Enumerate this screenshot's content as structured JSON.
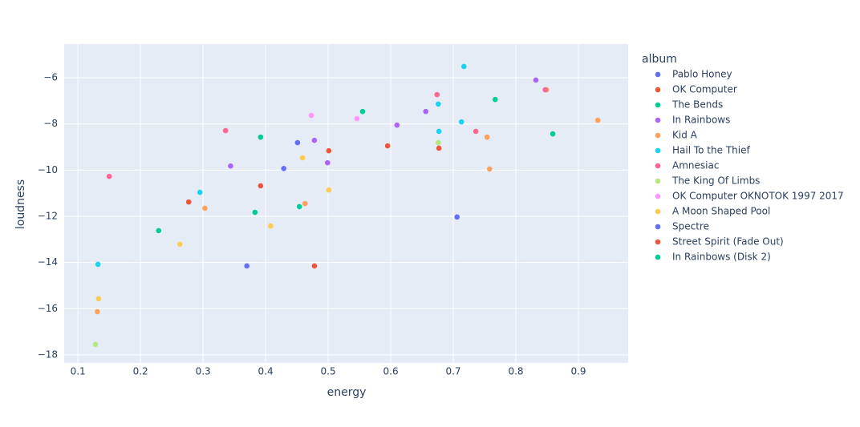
{
  "chart_data": {
    "type": "scatter",
    "x_label": "energy",
    "y_label": "loudness",
    "legend_title": "album",
    "xlim": [
      0.078,
      0.9795
    ],
    "ylim": [
      -18.35,
      -4.54
    ],
    "xticks": [
      0.1,
      0.2,
      0.3,
      0.4,
      0.5,
      0.6,
      0.7,
      0.8,
      0.9
    ],
    "yticks": [
      {
        "value": -18,
        "label": "−18"
      },
      {
        "value": -16,
        "label": "−16"
      },
      {
        "value": -14,
        "label": "−14"
      },
      {
        "value": -12,
        "label": "−12"
      },
      {
        "value": -10,
        "label": "−10"
      },
      {
        "value": -8,
        "label": "−8"
      },
      {
        "value": -6,
        "label": "−6"
      }
    ],
    "grid": true,
    "series": [
      {
        "name": "Pablo Honey",
        "color": "#636efa",
        "x": [
          0.451,
          0.37,
          0.706
        ],
        "values": [
          -8.81,
          -14.15,
          -12.03
        ]
      },
      {
        "name": "OK Computer",
        "color": "#EF553B",
        "x": [
          0.277,
          0.392,
          0.501,
          0.595,
          0.677
        ],
        "values": [
          -11.38,
          -10.68,
          -9.16,
          -8.95,
          -9.05
        ]
      },
      {
        "name": "The Bends",
        "color": "#00cc96",
        "x": [
          0.392,
          0.555,
          0.767,
          0.859
        ],
        "values": [
          -8.57,
          -7.46,
          -6.94,
          -8.43
        ]
      },
      {
        "name": "In Rainbows",
        "color": "#ab63fa",
        "x": [
          0.344,
          0.478,
          0.499,
          0.61,
          0.656,
          0.832
        ],
        "values": [
          -9.82,
          -8.71,
          -9.68,
          -8.05,
          -7.46,
          -6.1
        ]
      },
      {
        "name": "Kid A",
        "color": "#FFA15A",
        "x": [
          0.303,
          0.463,
          0.754,
          0.758,
          0.849,
          0.931,
          0.131
        ],
        "values": [
          -11.65,
          -11.45,
          -8.57,
          -9.95,
          -6.52,
          -7.84,
          -16.13
        ]
      },
      {
        "name": "Hail To the Thief",
        "color": "#19d3f3",
        "x": [
          0.295,
          0.132,
          0.676,
          0.677,
          0.713,
          0.717
        ],
        "values": [
          -10.96,
          -14.08,
          -7.14,
          -8.32,
          -7.91,
          -5.51
        ]
      },
      {
        "name": "Amnesiac",
        "color": "#FF6692",
        "x": [
          0.15,
          0.336,
          0.674,
          0.736,
          0.847
        ],
        "values": [
          -10.27,
          -8.29,
          -6.73,
          -8.32,
          -6.52
        ]
      },
      {
        "name": "The King Of Limbs",
        "color": "#B6E880",
        "x": [
          0.128,
          0.676
        ],
        "values": [
          -17.55,
          -8.81
        ]
      },
      {
        "name": "OK Computer OKNOTOK 1997 2017",
        "color": "#FF97FF",
        "x": [
          0.473,
          0.546
        ],
        "values": [
          -7.63,
          -7.77
        ]
      },
      {
        "name": "A Moon Shaped Pool",
        "color": "#FECB52",
        "x": [
          0.133,
          0.263,
          0.408,
          0.459,
          0.501
        ],
        "values": [
          -15.57,
          -13.21,
          -12.42,
          -9.47,
          -10.86
        ]
      },
      {
        "name": "Spectre",
        "color": "#636efa",
        "x": [
          0.429
        ],
        "values": [
          -9.93
        ]
      },
      {
        "name": "Street Spirit (Fade Out)",
        "color": "#EF553B",
        "x": [
          0.478
        ],
        "values": [
          -14.15
        ]
      },
      {
        "name": "In Rainbows (Disk 2)",
        "color": "#00cc96",
        "x": [
          0.229,
          0.383,
          0.454
        ],
        "values": [
          -12.62,
          -11.83,
          -11.58
        ]
      }
    ]
  }
}
